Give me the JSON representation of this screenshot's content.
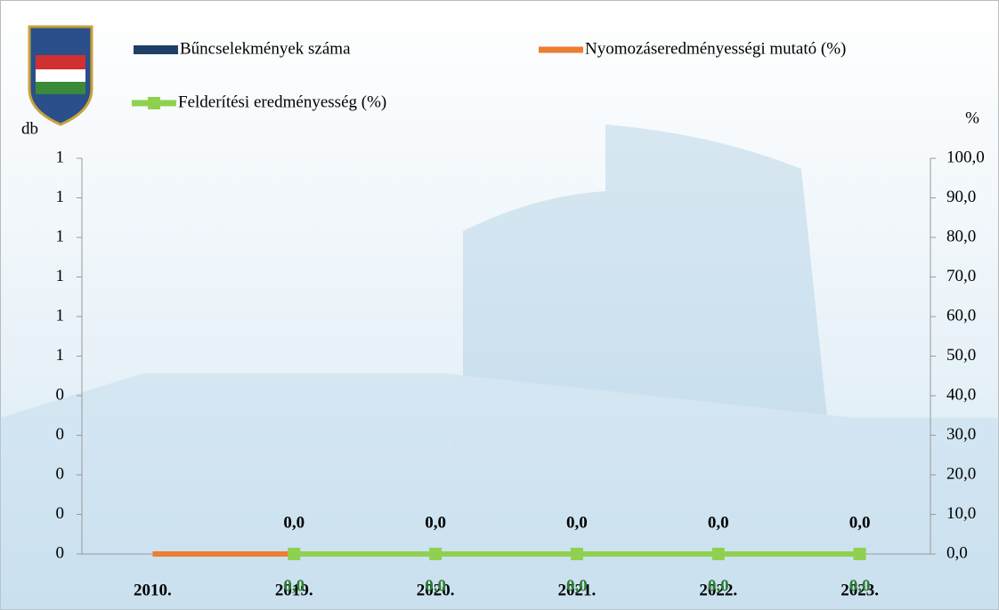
{
  "chart_data": {
    "type": "bar-line",
    "y_label": "db",
    "y2_label": "%",
    "categories": [
      "2010.",
      "2019.",
      "2020.",
      "2021.",
      "2022.",
      "2023."
    ],
    "series": [
      {
        "name": "Bűncselekmények száma",
        "type": "bar",
        "color": "#1f3f66",
        "values": [
          0,
          0,
          0,
          0,
          0,
          0
        ],
        "value_labels": [
          null,
          "0,0",
          "0,0",
          "0,0",
          "0,0",
          "0,0"
        ]
      },
      {
        "name": "Nyomozáseredményességi mutató (%)",
        "type": "line",
        "axis": "y2",
        "color": "#ed7d31",
        "values": [
          0,
          0,
          null,
          null,
          null,
          null
        ]
      },
      {
        "name": "Felderítési eredményesség (%)",
        "type": "line",
        "axis": "y2",
        "color": "#8fd14f",
        "marker": "square",
        "values": [
          null,
          0,
          0,
          0,
          0,
          0
        ],
        "value_labels": [
          null,
          "0,0",
          "0,0",
          "0,0",
          "0,0",
          "0,0"
        ]
      }
    ],
    "ylim": [
      0,
      1
    ],
    "yticks": [
      0,
      {
        "value": 0.1,
        "label": "0"
      },
      {
        "value": 0.2,
        "label": "0"
      },
      {
        "value": 0.3,
        "label": "0"
      },
      {
        "value": 0.4,
        "label": "0"
      },
      {
        "value": 0.5,
        "label": "1"
      },
      {
        "value": 0.6,
        "label": "1"
      },
      {
        "value": 0.7,
        "label": "1"
      },
      {
        "value": 0.8,
        "label": "1"
      },
      {
        "value": 0.9,
        "label": "1"
      },
      1
    ],
    "y2lim": [
      0,
      100
    ],
    "y2ticks": [
      {
        "value": 0,
        "label": "0,0"
      },
      {
        "value": 10,
        "label": "10,0"
      },
      {
        "value": 20,
        "label": "20,0"
      },
      {
        "value": 30,
        "label": "30,0"
      },
      {
        "value": 40,
        "label": "40,0"
      },
      {
        "value": 50,
        "label": "50,0"
      },
      {
        "value": 60,
        "label": "60,0"
      },
      {
        "value": 70,
        "label": "70,0"
      },
      {
        "value": 80,
        "label": "80,0"
      },
      {
        "value": 90,
        "label": "90,0"
      },
      {
        "value": 100,
        "label": "100,0"
      }
    ]
  }
}
